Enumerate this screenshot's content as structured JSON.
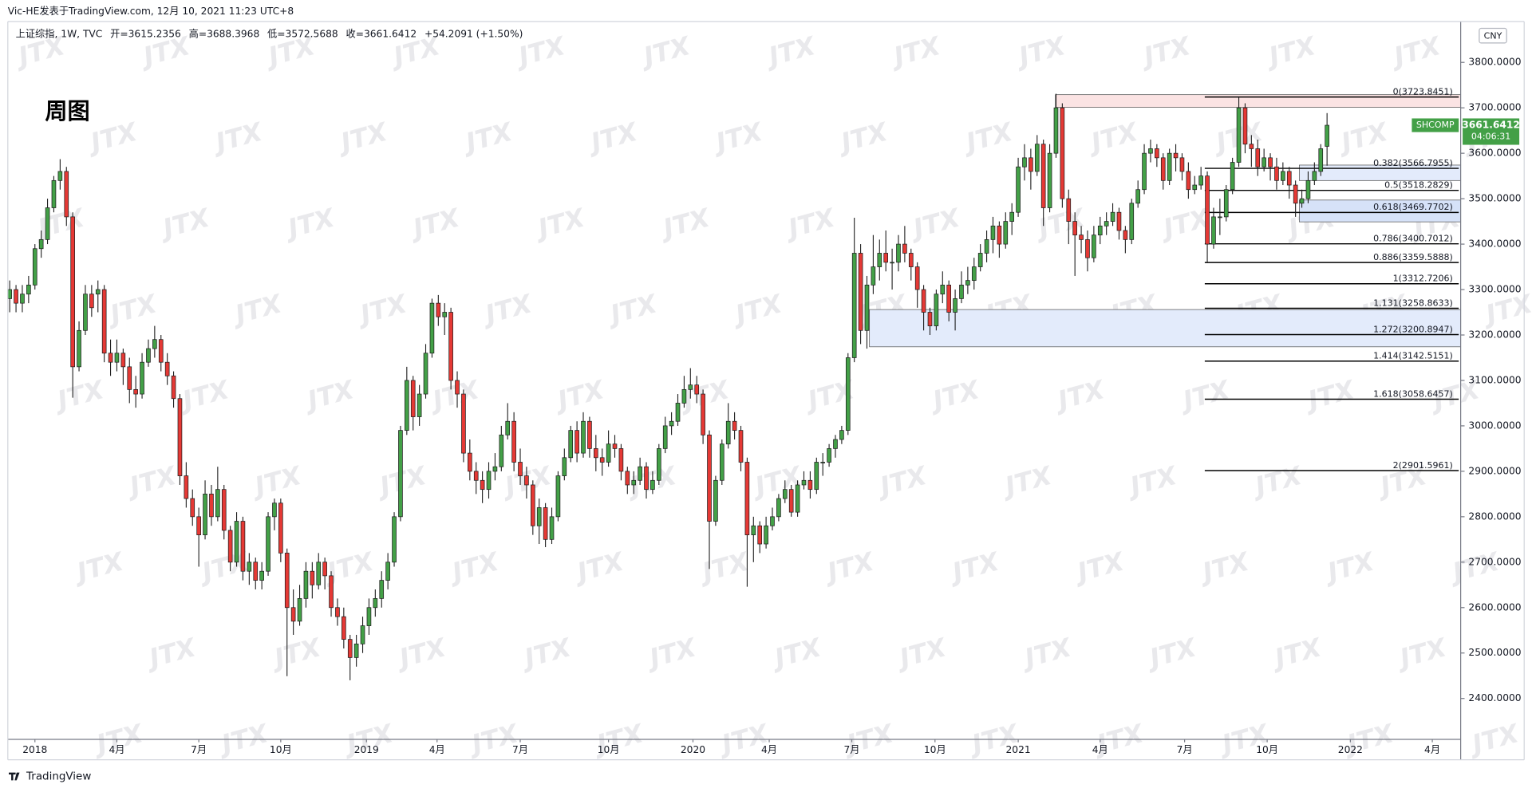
{
  "chart_data": {
    "type": "candlestick",
    "attribution": "Vic-HE发表于TradingView.com, 12月 10, 2021 11:23 UTC+8",
    "symbol": "上证综指, 1W, TVC",
    "ohlc_labels": [
      "开=3615.2356",
      "高=3688.3968",
      "低=3572.5688",
      "收=3661.6412",
      "+54.2091 (+1.50%)"
    ],
    "title": "周图",
    "currency": "CNY",
    "ticker": "SHCOMP",
    "last_price": "3661.6412",
    "countdown": "04:06:31",
    "watermark": "JTX",
    "brand": "TradingView",
    "up_color": "#43a047",
    "down_color": "#e53935",
    "ylim": [
      2310,
      3890
    ],
    "xlim": [
      -0.3,
      230.2
    ],
    "yticks": [
      {
        "value": 3800,
        "label": "3800.0000"
      },
      {
        "value": 3700,
        "label": "3700.0000"
      },
      {
        "value": 3600,
        "label": "3600.0000"
      },
      {
        "value": 3500,
        "label": "3500.0000"
      },
      {
        "value": 3400,
        "label": "3400.0000"
      },
      {
        "value": 3300,
        "label": "3300.0000"
      },
      {
        "value": 3200,
        "label": "3200.0000"
      },
      {
        "value": 3100,
        "label": "3100.0000"
      },
      {
        "value": 3000,
        "label": "3000.0000"
      },
      {
        "value": 2900,
        "label": "2900.0000"
      },
      {
        "value": 2800,
        "label": "2800.0000"
      },
      {
        "value": 2700,
        "label": "2700.0000"
      },
      {
        "value": 2600,
        "label": "2600.0000"
      },
      {
        "value": 2500,
        "label": "2500.0000"
      },
      {
        "value": 2400,
        "label": "2400.0000"
      }
    ],
    "xticks": [
      {
        "value": 4,
        "label": "2018"
      },
      {
        "value": 17,
        "label": "4月"
      },
      {
        "value": 30,
        "label": "7月"
      },
      {
        "value": 43,
        "label": "10月"
      },
      {
        "value": 56.6,
        "label": "2019"
      },
      {
        "value": 67.8,
        "label": "4月"
      },
      {
        "value": 81,
        "label": "7月"
      },
      {
        "value": 95,
        "label": "10月"
      },
      {
        "value": 108.4,
        "label": "2020"
      },
      {
        "value": 120.5,
        "label": "4月"
      },
      {
        "value": 133.6,
        "label": "7月"
      },
      {
        "value": 146.8,
        "label": "10月"
      },
      {
        "value": 160,
        "label": "2021"
      },
      {
        "value": 173,
        "label": "4月"
      },
      {
        "value": 186.4,
        "label": "7月"
      },
      {
        "value": 199.5,
        "label": "10月"
      },
      {
        "value": 212.7,
        "label": "2022"
      },
      {
        "value": 225.7,
        "label": "4月"
      }
    ],
    "fib_start": 189.6,
    "fib": [
      {
        "label": "0(3723.8451)",
        "value": 3723.8451
      },
      {
        "label": "0.382(3566.7955)",
        "value": 3566.7955
      },
      {
        "label": "0.5(3518.2829)",
        "value": 3518.2829
      },
      {
        "label": "0.618(3469.7702)",
        "value": 3469.7702
      },
      {
        "label": "0.786(3400.7012)",
        "value": 3400.7012
      },
      {
        "label": "0.886(3359.5888)",
        "value": 3359.5888
      },
      {
        "label": "1(3312.7206)",
        "value": 3312.7206
      },
      {
        "label": "1.131(3258.8633)",
        "value": 3258.8633
      },
      {
        "label": "1.272(3200.8947)",
        "value": 3200.8947
      },
      {
        "label": "1.414(3142.5151)",
        "value": 3142.5151
      },
      {
        "label": "1.618(3058.6457)",
        "value": 3058.6457
      },
      {
        "label": "2(2901.5961)",
        "value": 2901.5961
      }
    ],
    "zones": [
      {
        "start": 165.9,
        "top": 3729,
        "bottom": 3701,
        "color": "#fbe3e3"
      },
      {
        "start": 136.4,
        "top": 3256,
        "bottom": 3174,
        "color": "#e3ebfb"
      },
      {
        "start": 204.6,
        "top": 3497,
        "bottom": 3449,
        "color": "#d6e2f8"
      },
      {
        "start": 204.6,
        "top": 3574,
        "bottom": 3540,
        "color": "#e3ebfb"
      }
    ],
    "candles": [
      [
        3280,
        3320,
        3250,
        3300
      ],
      [
        3300,
        3310,
        3250,
        3270
      ],
      [
        3270,
        3310,
        3250,
        3290
      ],
      [
        3290,
        3330,
        3270,
        3310
      ],
      [
        3310,
        3400,
        3300,
        3390
      ],
      [
        3390,
        3430,
        3370,
        3410
      ],
      [
        3410,
        3500,
        3400,
        3480
      ],
      [
        3480,
        3550,
        3470,
        3540
      ],
      [
        3540,
        3587,
        3520,
        3560
      ],
      [
        3560,
        3570,
        3440,
        3460
      ],
      [
        3460,
        3470,
        3062,
        3130
      ],
      [
        3130,
        3230,
        3120,
        3210
      ],
      [
        3210,
        3310,
        3200,
        3290
      ],
      [
        3290,
        3310,
        3240,
        3260
      ],
      [
        3290,
        3320,
        3250,
        3300
      ],
      [
        3300,
        3310,
        3140,
        3160
      ],
      [
        3160,
        3190,
        3110,
        3140
      ],
      [
        3140,
        3190,
        3120,
        3160
      ],
      [
        3160,
        3170,
        3090,
        3130
      ],
      [
        3130,
        3150,
        3050,
        3080
      ],
      [
        3080,
        3110,
        3040,
        3070
      ],
      [
        3070,
        3160,
        3060,
        3140
      ],
      [
        3140,
        3190,
        3130,
        3170
      ],
      [
        3170,
        3220,
        3150,
        3190
      ],
      [
        3190,
        3200,
        3120,
        3140
      ],
      [
        3140,
        3160,
        3090,
        3110
      ],
      [
        3110,
        3120,
        3040,
        3060
      ],
      [
        3060,
        3070,
        2870,
        2890
      ],
      [
        2890,
        2920,
        2820,
        2840
      ],
      [
        2840,
        2860,
        2780,
        2800
      ],
      [
        2800,
        2820,
        2690,
        2760
      ],
      [
        2760,
        2880,
        2750,
        2850
      ],
      [
        2850,
        2870,
        2780,
        2800
      ],
      [
        2800,
        2910,
        2790,
        2860
      ],
      [
        2860,
        2870,
        2750,
        2770
      ],
      [
        2770,
        2780,
        2680,
        2700
      ],
      [
        2700,
        2810,
        2690,
        2790
      ],
      [
        2790,
        2800,
        2660,
        2680
      ],
      [
        2680,
        2720,
        2650,
        2700
      ],
      [
        2700,
        2710,
        2640,
        2660
      ],
      [
        2660,
        2700,
        2640,
        2680
      ],
      [
        2680,
        2810,
        2670,
        2800
      ],
      [
        2800,
        2840,
        2770,
        2830
      ],
      [
        2830,
        2840,
        2700,
        2720
      ],
      [
        2720,
        2730,
        2449,
        2600
      ],
      [
        2600,
        2640,
        2540,
        2570
      ],
      [
        2570,
        2650,
        2560,
        2620
      ],
      [
        2620,
        2700,
        2600,
        2680
      ],
      [
        2680,
        2700,
        2620,
        2650
      ],
      [
        2650,
        2720,
        2640,
        2700
      ],
      [
        2700,
        2710,
        2640,
        2670
      ],
      [
        2670,
        2680,
        2580,
        2600
      ],
      [
        2600,
        2620,
        2560,
        2580
      ],
      [
        2580,
        2600,
        2510,
        2530
      ],
      [
        2530,
        2540,
        2440,
        2490
      ],
      [
        2490,
        2540,
        2470,
        2520
      ],
      [
        2520,
        2580,
        2500,
        2560
      ],
      [
        2560,
        2620,
        2540,
        2600
      ],
      [
        2600,
        2640,
        2580,
        2620
      ],
      [
        2620,
        2680,
        2600,
        2660
      ],
      [
        2660,
        2720,
        2640,
        2700
      ],
      [
        2700,
        2810,
        2690,
        2800
      ],
      [
        2800,
        3000,
        2790,
        2990
      ],
      [
        2990,
        3130,
        2980,
        3100
      ],
      [
        3100,
        3110,
        2990,
        3020
      ],
      [
        3020,
        3090,
        3000,
        3070
      ],
      [
        3070,
        3180,
        3060,
        3160
      ],
      [
        3160,
        3280,
        3150,
        3270
      ],
      [
        3270,
        3288,
        3220,
        3240
      ],
      [
        3240,
        3270,
        3200,
        3250
      ],
      [
        3250,
        3260,
        3080,
        3100
      ],
      [
        3100,
        3120,
        3040,
        3070
      ],
      [
        3070,
        3080,
        2920,
        2940
      ],
      [
        2940,
        2970,
        2880,
        2900
      ],
      [
        2900,
        2920,
        2850,
        2880
      ],
      [
        2880,
        2900,
        2830,
        2860
      ],
      [
        2860,
        2920,
        2840,
        2900
      ],
      [
        2900,
        2940,
        2880,
        2910
      ],
      [
        2910,
        3000,
        2900,
        2980
      ],
      [
        2980,
        3050,
        2970,
        3010
      ],
      [
        3010,
        3030,
        2900,
        2920
      ],
      [
        2920,
        2950,
        2870,
        2890
      ],
      [
        2890,
        2910,
        2840,
        2870
      ],
      [
        2870,
        2880,
        2760,
        2780
      ],
      [
        2780,
        2840,
        2740,
        2820
      ],
      [
        2820,
        2830,
        2733,
        2750
      ],
      [
        2750,
        2820,
        2740,
        2800
      ],
      [
        2800,
        2900,
        2790,
        2890
      ],
      [
        2890,
        2950,
        2880,
        2930
      ],
      [
        2930,
        3000,
        2920,
        2990
      ],
      [
        2990,
        3010,
        2920,
        2940
      ],
      [
        2940,
        3030,
        2930,
        3010
      ],
      [
        3010,
        3020,
        2930,
        2950
      ],
      [
        2950,
        2980,
        2900,
        2930
      ],
      [
        2930,
        2950,
        2890,
        2920
      ],
      [
        2920,
        2990,
        2910,
        2960
      ],
      [
        2960,
        2980,
        2930,
        2950
      ],
      [
        2950,
        2960,
        2880,
        2900
      ],
      [
        2900,
        2910,
        2850,
        2870
      ],
      [
        2870,
        2900,
        2850,
        2880
      ],
      [
        2880,
        2930,
        2870,
        2910
      ],
      [
        2910,
        2920,
        2840,
        2860
      ],
      [
        2860,
        2900,
        2850,
        2880
      ],
      [
        2880,
        2960,
        2870,
        2950
      ],
      [
        2950,
        3020,
        2940,
        3000
      ],
      [
        3000,
        3030,
        2980,
        3010
      ],
      [
        3010,
        3070,
        3000,
        3050
      ],
      [
        3050,
        3110,
        3040,
        3080
      ],
      [
        3080,
        3127,
        3060,
        3090
      ],
      [
        3090,
        3110,
        3050,
        3070
      ],
      [
        3070,
        3080,
        2960,
        2980
      ],
      [
        2980,
        2990,
        2685,
        2790
      ],
      [
        2790,
        2890,
        2780,
        2880
      ],
      [
        2880,
        2970,
        2870,
        2960
      ],
      [
        2960,
        3050,
        2950,
        3010
      ],
      [
        3010,
        3030,
        2970,
        2990
      ],
      [
        2990,
        3000,
        2900,
        2920
      ],
      [
        2920,
        2930,
        2646,
        2760
      ],
      [
        2760,
        2800,
        2700,
        2780
      ],
      [
        2780,
        2790,
        2720,
        2740
      ],
      [
        2740,
        2800,
        2730,
        2780
      ],
      [
        2780,
        2820,
        2770,
        2800
      ],
      [
        2800,
        2850,
        2790,
        2840
      ],
      [
        2840,
        2880,
        2830,
        2860
      ],
      [
        2860,
        2870,
        2800,
        2810
      ],
      [
        2810,
        2880,
        2800,
        2870
      ],
      [
        2870,
        2900,
        2860,
        2880
      ],
      [
        2880,
        2900,
        2840,
        2860
      ],
      [
        2860,
        2930,
        2850,
        2920
      ],
      [
        2920,
        2940,
        2890,
        2920
      ],
      [
        2920,
        2960,
        2910,
        2950
      ],
      [
        2950,
        2980,
        2930,
        2970
      ],
      [
        2970,
        3000,
        2960,
        2990
      ],
      [
        2990,
        3160,
        2980,
        3150
      ],
      [
        3150,
        3458,
        3140,
        3380
      ],
      [
        3380,
        3400,
        3180,
        3210
      ],
      [
        3210,
        3330,
        3170,
        3310
      ],
      [
        3310,
        3420,
        3290,
        3350
      ],
      [
        3350,
        3410,
        3320,
        3380
      ],
      [
        3380,
        3430,
        3340,
        3360
      ],
      [
        3360,
        3390,
        3300,
        3360
      ],
      [
        3360,
        3420,
        3340,
        3400
      ],
      [
        3400,
        3440,
        3360,
        3380
      ],
      [
        3380,
        3390,
        3320,
        3350
      ],
      [
        3350,
        3360,
        3260,
        3300
      ],
      [
        3300,
        3310,
        3210,
        3250
      ],
      [
        3250,
        3260,
        3200,
        3220
      ],
      [
        3220,
        3300,
        3210,
        3290
      ],
      [
        3290,
        3340,
        3270,
        3310
      ],
      [
        3310,
        3320,
        3230,
        3250
      ],
      [
        3250,
        3300,
        3210,
        3280
      ],
      [
        3280,
        3340,
        3270,
        3310
      ],
      [
        3310,
        3350,
        3290,
        3320
      ],
      [
        3320,
        3370,
        3300,
        3350
      ],
      [
        3350,
        3400,
        3340,
        3380
      ],
      [
        3380,
        3430,
        3360,
        3410
      ],
      [
        3410,
        3460,
        3380,
        3440
      ],
      [
        3440,
        3450,
        3370,
        3400
      ],
      [
        3400,
        3470,
        3390,
        3450
      ],
      [
        3450,
        3490,
        3420,
        3470
      ],
      [
        3470,
        3590,
        3460,
        3570
      ],
      [
        3570,
        3620,
        3540,
        3590
      ],
      [
        3590,
        3610,
        3520,
        3560
      ],
      [
        3560,
        3640,
        3550,
        3620
      ],
      [
        3620,
        3630,
        3440,
        3480
      ],
      [
        3480,
        3620,
        3470,
        3600
      ],
      [
        3600,
        3731,
        3590,
        3700
      ],
      [
        3700,
        3710,
        3480,
        3500
      ],
      [
        3500,
        3520,
        3400,
        3450
      ],
      [
        3450,
        3470,
        3330,
        3420
      ],
      [
        3420,
        3440,
        3380,
        3410
      ],
      [
        3410,
        3430,
        3340,
        3370
      ],
      [
        3370,
        3440,
        3360,
        3420
      ],
      [
        3420,
        3460,
        3400,
        3440
      ],
      [
        3440,
        3470,
        3420,
        3450
      ],
      [
        3450,
        3490,
        3440,
        3470
      ],
      [
        3470,
        3480,
        3410,
        3430
      ],
      [
        3430,
        3440,
        3380,
        3410
      ],
      [
        3410,
        3500,
        3400,
        3490
      ],
      [
        3490,
        3540,
        3480,
        3520
      ],
      [
        3520,
        3620,
        3510,
        3600
      ],
      [
        3600,
        3630,
        3580,
        3610
      ],
      [
        3610,
        3620,
        3570,
        3590
      ],
      [
        3590,
        3600,
        3520,
        3540
      ],
      [
        3540,
        3610,
        3530,
        3600
      ],
      [
        3600,
        3620,
        3560,
        3590
      ],
      [
        3590,
        3600,
        3540,
        3560
      ],
      [
        3560,
        3580,
        3500,
        3520
      ],
      [
        3520,
        3550,
        3510,
        3530
      ],
      [
        3530,
        3570,
        3520,
        3550
      ],
      [
        3550,
        3560,
        3360,
        3400
      ],
      [
        3400,
        3480,
        3390,
        3460
      ],
      [
        3460,
        3500,
        3420,
        3460
      ],
      [
        3460,
        3530,
        3450,
        3520
      ],
      [
        3520,
        3590,
        3510,
        3580
      ],
      [
        3580,
        3723,
        3570,
        3700
      ],
      [
        3700,
        3710,
        3600,
        3620
      ],
      [
        3620,
        3640,
        3570,
        3610
      ],
      [
        3610,
        3630,
        3550,
        3570
      ],
      [
        3570,
        3610,
        3560,
        3590
      ],
      [
        3590,
        3600,
        3540,
        3570
      ],
      [
        3570,
        3590,
        3520,
        3540
      ],
      [
        3540,
        3580,
        3530,
        3560
      ],
      [
        3560,
        3570,
        3500,
        3530
      ],
      [
        3530,
        3540,
        3460,
        3490
      ],
      [
        3490,
        3520,
        3480,
        3500
      ],
      [
        3500,
        3560,
        3490,
        3540
      ],
      [
        3540,
        3580,
        3530,
        3560
      ],
      [
        3560,
        3620,
        3550,
        3610
      ],
      [
        3615.2356,
        3688.3968,
        3572.5688,
        3661.6412
      ]
    ]
  }
}
